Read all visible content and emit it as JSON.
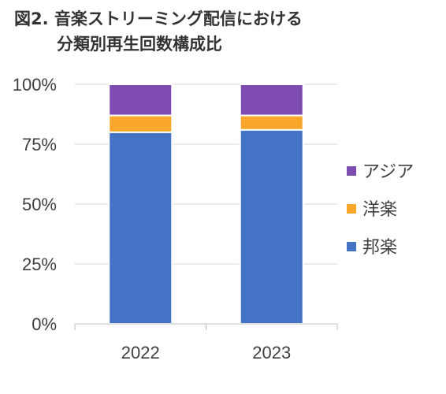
{
  "title": {
    "line1": "図2. 音楽ストリーミング配信における",
    "line2": "分類別再生回数構成比"
  },
  "chart_data": {
    "type": "bar",
    "stacked": true,
    "categories": [
      "2022",
      "2023"
    ],
    "series": [
      {
        "name": "邦楽",
        "values": [
          80,
          81
        ],
        "color": "#4472C4"
      },
      {
        "name": "洋楽",
        "values": [
          7,
          6
        ],
        "color": "#F9A72B"
      },
      {
        "name": "アジア",
        "values": [
          13,
          13
        ],
        "color": "#7E4BB1"
      }
    ],
    "ylim": [
      0,
      100
    ],
    "yticks": [
      "0%",
      "25%",
      "50%",
      "75%",
      "100%"
    ],
    "grid": true,
    "legend_position": "right"
  }
}
